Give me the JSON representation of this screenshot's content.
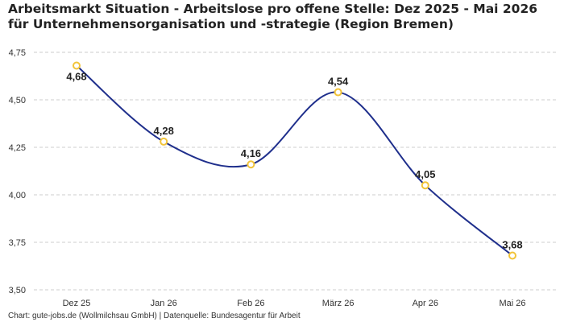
{
  "chart_data": {
    "type": "line",
    "title": "Arbeitsmarkt Situation - Arbeitslose pro offene Stelle: Dez 2025 - Mai 2026 für Unternehmensorganisation und -strategie (Region Bremen)",
    "xlabel": "",
    "ylabel": "",
    "categories": [
      "Dez 25",
      "Jan 26",
      "Feb 26",
      "März 26",
      "Apr 26",
      "Mai 26"
    ],
    "series": [
      {
        "values": [
          4.68,
          4.28,
          4.16,
          4.54,
          4.05,
          3.68
        ],
        "labels": [
          "4,68",
          "4,28",
          "4,16",
          "4,54",
          "4,05",
          "3,68"
        ]
      }
    ],
    "ylim": [
      3.5,
      4.75
    ],
    "yticks": [
      3.5,
      3.75,
      4.0,
      4.25,
      4.5,
      4.75
    ],
    "ytick_labels": [
      "3,50",
      "3,75",
      "4,00",
      "4,25",
      "4,50",
      "4,75"
    ],
    "grid": true,
    "legend": "none",
    "colors": {
      "line": "#1f2f8c",
      "marker_stroke": "#f2c43a",
      "marker_fill": "#ffffff",
      "grid": "#cccccc",
      "text": "#222222"
    }
  },
  "footer": {
    "source": "Chart: gute-jobs.de (Wollmilchsau GmbH) | Datenquelle: Bundesagentur für Arbeit"
  }
}
